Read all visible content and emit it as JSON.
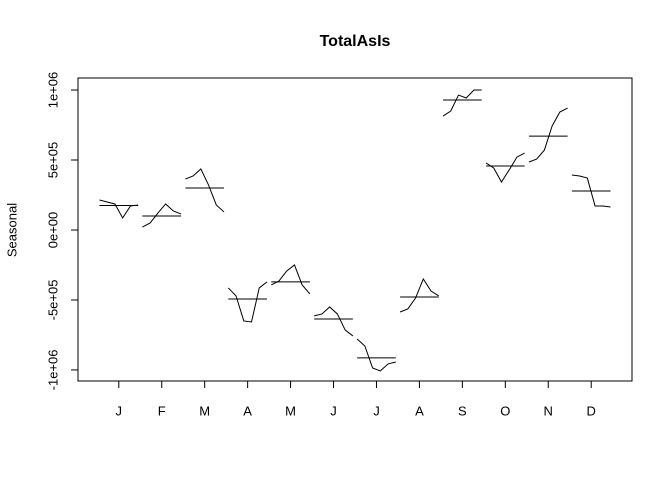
{
  "chart_data": {
    "type": "monthplot",
    "title": "TotalAsIs",
    "y_label": "Seasonal",
    "categories": [
      "J",
      "F",
      "M",
      "A",
      "M",
      "J",
      "J",
      "A",
      "S",
      "O",
      "N",
      "D"
    ],
    "subseries": [
      [
        214000,
        200000,
        186000,
        86000,
        171000,
        179000
      ],
      [
        21000,
        50000,
        121000,
        186000,
        136000,
        114000
      ],
      [
        364000,
        386000,
        436000,
        321000,
        179000,
        129000
      ],
      [
        -414000,
        -471000,
        -650000,
        -657000,
        -414000,
        -371000
      ],
      [
        -393000,
        -364000,
        -293000,
        -250000,
        -393000,
        -457000
      ],
      [
        -614000,
        -600000,
        -550000,
        -600000,
        -714000,
        -757000
      ],
      [
        -779000,
        -829000,
        -986000,
        -1007000,
        -957000,
        -943000
      ],
      [
        -586000,
        -564000,
        -486000,
        -350000,
        -436000,
        -471000
      ],
      [
        814000,
        850000,
        964000,
        943000,
        1000000,
        1000000
      ],
      [
        479000,
        443000,
        343000,
        429000,
        521000,
        550000
      ],
      [
        486000,
        507000,
        571000,
        743000,
        843000,
        871000
      ],
      [
        393000,
        386000,
        371000,
        171000,
        171000,
        164000
      ]
    ],
    "means": [
      175000,
      100000,
      300000,
      -493000,
      -371000,
      -636000,
      -914000,
      -479000,
      929000,
      457000,
      671000,
      279000
    ],
    "color": "#000000",
    "ylim": [
      -1079000,
      1086000
    ],
    "yticks": [
      {
        "value": -1000000,
        "label": "-1e+06"
      },
      {
        "value": -500000,
        "label": "-5e+05"
      },
      {
        "value": 0,
        "label": "0e+00"
      },
      {
        "value": 500000,
        "label": "5e+05"
      },
      {
        "value": 1000000,
        "label": "1e+06"
      }
    ]
  }
}
